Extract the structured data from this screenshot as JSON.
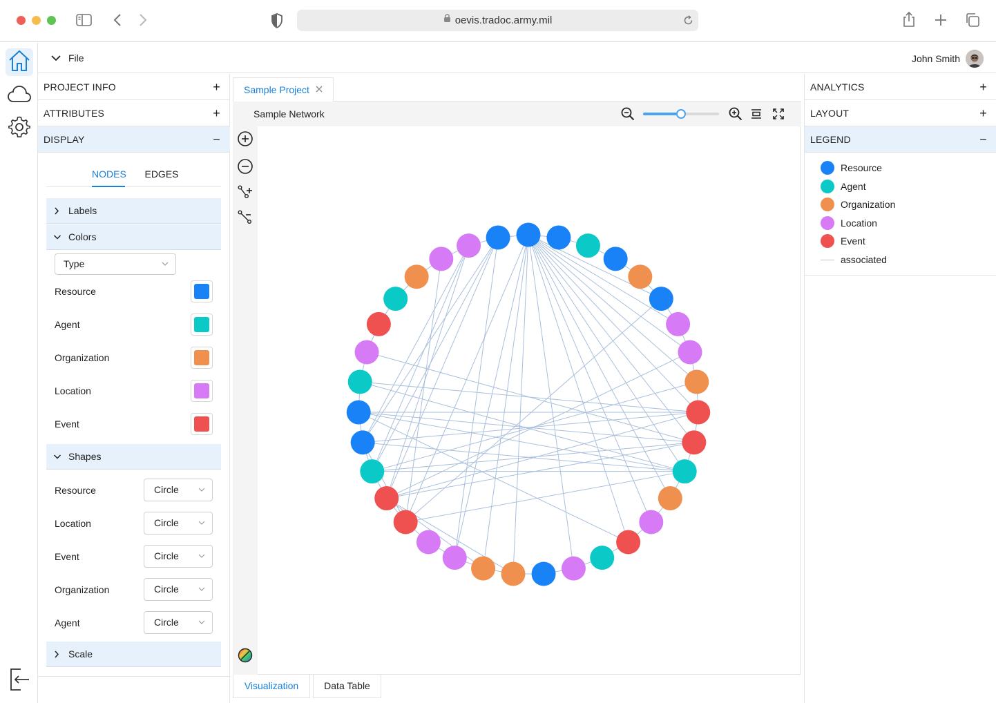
{
  "browser": {
    "url": "oevis.tradoc.army.mil"
  },
  "app": {
    "file_menu": "File",
    "user_name": "John Smith"
  },
  "left_panel": {
    "sections": [
      "PROJECT INFO",
      "ATTRIBUTES",
      "DISPLAY"
    ],
    "tabs": [
      "NODES",
      "EDGES"
    ],
    "subsections": {
      "labels": "Labels",
      "colors": "Colors",
      "shapes": "Shapes",
      "scale": "Scale"
    },
    "color_by": "Type",
    "colors": [
      {
        "label": "Resource",
        "color": "#1a82f7"
      },
      {
        "label": "Agent",
        "color": "#0ac9c6"
      },
      {
        "label": "Organization",
        "color": "#f0904f"
      },
      {
        "label": "Location",
        "color": "#d67bf5"
      },
      {
        "label": "Event",
        "color": "#ef5050"
      }
    ],
    "shapes": [
      {
        "label": "Resource",
        "value": "Circle"
      },
      {
        "label": "Location",
        "value": "Circle"
      },
      {
        "label": "Event",
        "value": "Circle"
      },
      {
        "label": "Organization",
        "value": "Circle"
      },
      {
        "label": "Agent",
        "value": "Circle"
      }
    ]
  },
  "center": {
    "project_tab": "Sample Project",
    "network_title": "Sample Network",
    "zoom_level": 0.5,
    "bottom_tabs": [
      "Visualization",
      "Data Table"
    ]
  },
  "right_panel": {
    "sections": [
      "ANALYTICS",
      "LAYOUT",
      "LEGEND"
    ],
    "legend": [
      {
        "label": "Resource",
        "color": "#1a82f7"
      },
      {
        "label": "Agent",
        "color": "#0ac9c6"
      },
      {
        "label": "Organization",
        "color": "#f0904f"
      },
      {
        "label": "Location",
        "color": "#d67bf5"
      },
      {
        "label": "Event",
        "color": "#ef5050"
      }
    ],
    "edge_legend": "associated"
  },
  "network": {
    "node_types_clockwise_from_top": [
      "Resource",
      "Resource",
      "Agent",
      "Resource",
      "Organization",
      "Resource",
      "Location",
      "Location",
      "Organization",
      "Event",
      "Event",
      "Agent",
      "Organization",
      "Location",
      "Event",
      "Agent",
      "Location",
      "Resource",
      "Organization",
      "Organization",
      "Location",
      "Location",
      "Event",
      "Event",
      "Agent",
      "Resource",
      "Resource",
      "Agent",
      "Location",
      "Event",
      "Agent",
      "Organization",
      "Location",
      "Location",
      "Resource"
    ],
    "type_colors": {
      "Resource": "#1a82f7",
      "Agent": "#0ac9c6",
      "Organization": "#f0904f",
      "Location": "#d67bf5",
      "Event": "#ef5050"
    },
    "edges": [
      [
        0,
        5
      ],
      [
        0,
        6
      ],
      [
        0,
        7
      ],
      [
        0,
        8
      ],
      [
        0,
        9
      ],
      [
        0,
        10
      ],
      [
        0,
        11
      ],
      [
        0,
        12
      ],
      [
        0,
        13
      ],
      [
        0,
        14
      ],
      [
        0,
        16
      ],
      [
        0,
        18
      ],
      [
        0,
        19
      ],
      [
        0,
        20
      ],
      [
        0,
        22
      ],
      [
        34,
        25
      ],
      [
        34,
        24
      ],
      [
        34,
        23
      ],
      [
        34,
        20
      ],
      [
        33,
        23
      ],
      [
        33,
        25
      ],
      [
        33,
        24
      ],
      [
        32,
        22
      ],
      [
        26,
        10
      ],
      [
        26,
        9
      ],
      [
        26,
        11
      ],
      [
        26,
        14
      ],
      [
        24,
        10
      ],
      [
        24,
        11
      ],
      [
        23,
        9
      ],
      [
        23,
        10
      ],
      [
        22,
        11
      ],
      [
        23,
        19
      ],
      [
        23,
        18
      ],
      [
        25,
        9
      ],
      [
        25,
        11
      ],
      [
        27,
        11
      ],
      [
        28,
        10
      ],
      [
        27,
        9
      ],
      [
        25,
        22
      ],
      [
        24,
        8
      ],
      [
        23,
        7
      ],
      [
        22,
        5
      ]
    ]
  }
}
